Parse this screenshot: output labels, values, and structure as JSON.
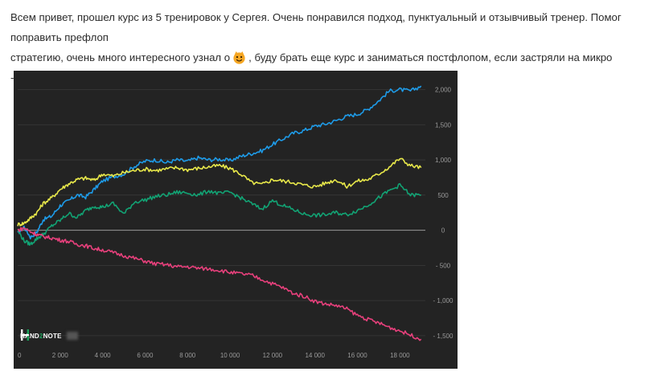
{
  "post": {
    "line1": "Всем привет, прошел курс из 5 тренировок у Сергея.  Очень понравился подход, пунктуальный и отзывчивый тренер. Помог поправить префлоп",
    "line2a": "стратегию, очень много интересного узнал о",
    "line2b": ", буду брать еще курс и заниматься постфлопом, если застряли на микро -напишите Сергею)",
    "emoji_icon": "smiling-face-emoji-icon"
  },
  "logo": {
    "text_a": "HAND",
    "text_b": "2",
    "text_c": "NOTE"
  },
  "chart_data": {
    "type": "line",
    "background": "#232323",
    "grid": true,
    "xlim": [
      0,
      19200
    ],
    "ylim": [
      -1650,
      2200
    ],
    "x_ticks": [
      0,
      2000,
      4000,
      6000,
      8000,
      10000,
      12000,
      14000,
      16000,
      18000
    ],
    "x_tick_labels": [
      "0",
      "2 000",
      "4 000",
      "6 000",
      "8 000",
      "10 000",
      "12 000",
      "14 000",
      "16 000",
      "18 000"
    ],
    "y_ticks": [
      2000,
      1500,
      1000,
      500,
      0,
      -500,
      -1000,
      -1500
    ],
    "y_tick_labels": [
      "2,000",
      "1,500",
      "1,000",
      "500",
      "0",
      "- 500",
      "- 1,000",
      "- 1,500"
    ],
    "series": [
      {
        "color": "#1e9be8",
        "x": [
          0,
          300,
          600,
          900,
          1200,
          1600,
          2000,
          2400,
          2800,
          3200,
          3600,
          4000,
          4500,
          5000,
          5500,
          6000,
          6500,
          7000,
          7500,
          8000,
          8500,
          9000,
          9500,
          10000,
          10500,
          11000,
          11500,
          12000,
          12500,
          13000,
          13500,
          14000,
          14500,
          15000,
          15500,
          16000,
          16500,
          17000,
          17500,
          18000,
          18500,
          19000
        ],
        "y": [
          -50,
          50,
          -100,
          -30,
          150,
          200,
          350,
          420,
          500,
          470,
          580,
          700,
          760,
          800,
          910,
          980,
          1000,
          960,
          1000,
          980,
          1030,
          1000,
          1010,
          990,
          1050,
          1090,
          1130,
          1220,
          1300,
          1380,
          1420,
          1480,
          1510,
          1560,
          1620,
          1650,
          1720,
          1840,
          1980,
          2000,
          1980,
          2050
        ]
      },
      {
        "color": "#e8e84a",
        "x": [
          0,
          300,
          600,
          900,
          1200,
          1600,
          2000,
          2400,
          2800,
          3200,
          3600,
          4000,
          4500,
          5000,
          5500,
          6000,
          6500,
          7000,
          7500,
          8000,
          8500,
          9000,
          9500,
          10000,
          10500,
          11000,
          11500,
          12000,
          12500,
          13000,
          13500,
          14000,
          14500,
          15000,
          15500,
          16000,
          16500,
          17000,
          17500,
          18000,
          18500,
          19000
        ],
        "y": [
          80,
          100,
          170,
          250,
          380,
          460,
          580,
          660,
          720,
          740,
          710,
          800,
          770,
          820,
          850,
          870,
          850,
          870,
          890,
          860,
          880,
          900,
          920,
          880,
          800,
          680,
          650,
          720,
          700,
          680,
          640,
          620,
          670,
          720,
          620,
          700,
          720,
          800,
          900,
          1020,
          920,
          890
        ]
      },
      {
        "color": "#12a374",
        "x": [
          0,
          300,
          600,
          900,
          1200,
          1600,
          2000,
          2400,
          2800,
          3200,
          3600,
          4000,
          4500,
          5000,
          5500,
          6000,
          6500,
          7000,
          7500,
          8000,
          8500,
          9000,
          9500,
          10000,
          10500,
          11000,
          11500,
          12000,
          12500,
          13000,
          13500,
          14000,
          14500,
          15000,
          15500,
          16000,
          16500,
          17000,
          17500,
          18000,
          18500,
          19000
        ],
        "y": [
          0,
          -150,
          -200,
          -120,
          -60,
          60,
          140,
          240,
          180,
          280,
          340,
          330,
          380,
          230,
          400,
          430,
          480,
          500,
          540,
          530,
          500,
          560,
          520,
          540,
          460,
          380,
          300,
          420,
          350,
          290,
          230,
          210,
          220,
          250,
          220,
          280,
          360,
          460,
          560,
          640,
          500,
          500
        ]
      },
      {
        "color": "#e8407c",
        "x": [
          0,
          300,
          600,
          900,
          1200,
          1600,
          2000,
          2400,
          2800,
          3200,
          3600,
          4000,
          4500,
          5000,
          5500,
          6000,
          6500,
          7000,
          7500,
          8000,
          8500,
          9000,
          9500,
          10000,
          10500,
          11000,
          11500,
          12000,
          12500,
          13000,
          13500,
          14000,
          14500,
          15000,
          15500,
          16000,
          16500,
          17000,
          17500,
          18000,
          18500,
          19000
        ],
        "y": [
          0,
          30,
          -20,
          -60,
          -90,
          -110,
          -140,
          -160,
          -200,
          -220,
          -260,
          -280,
          -320,
          -360,
          -400,
          -440,
          -480,
          -490,
          -520,
          -520,
          -540,
          -550,
          -570,
          -600,
          -620,
          -640,
          -700,
          -760,
          -820,
          -900,
          -940,
          -1010,
          -1050,
          -1070,
          -1120,
          -1210,
          -1270,
          -1320,
          -1380,
          -1430,
          -1490,
          -1550
        ]
      }
    ]
  }
}
